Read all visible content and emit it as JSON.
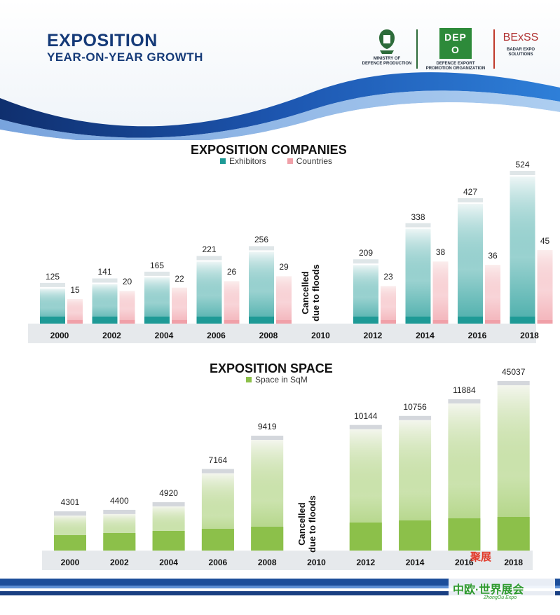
{
  "header": {
    "title": "EXPOSITION",
    "subtitle": "YEAR-ON-YEAR GROWTH",
    "logos": [
      {
        "name": "ministry-logo",
        "line1": "MINISTRY OF",
        "line2": "DEFENCE PRODUCTION"
      },
      {
        "name": "depo-logo",
        "mark": "DEPO",
        "line1": "DEFENCE EXPORT",
        "line2": "PROMOTION ORGANIZATION"
      },
      {
        "name": "badar-logo",
        "mark": "BExSS",
        "line1": "BADAR EXPO",
        "line2": "SOLUTIONS"
      }
    ]
  },
  "colors": {
    "header_blue": "#153a78",
    "exhibitors": "#1e9a96",
    "countries": "#f0a0a8",
    "space": "#8cc04a"
  },
  "cancel_note": [
    "Cancelled",
    "due to floods"
  ],
  "chart_data": [
    {
      "type": "bar",
      "title": "EXPOSITION COMPANIES",
      "categories": [
        "2000",
        "2002",
        "2004",
        "2006",
        "2008",
        "2010",
        "2012",
        "2014",
        "2016",
        "2018"
      ],
      "series": [
        {
          "name": "Exhibitors",
          "values": [
            125,
            141,
            165,
            221,
            256,
            null,
            209,
            338,
            427,
            524
          ]
        },
        {
          "name": "Countries",
          "values": [
            15,
            20,
            22,
            26,
            29,
            null,
            23,
            38,
            36,
            45
          ]
        }
      ],
      "legend": "top"
    },
    {
      "type": "bar",
      "title": "EXPOSITION SPACE",
      "categories": [
        "2000",
        "2002",
        "2004",
        "2006",
        "2008",
        "2010",
        "2012",
        "2014",
        "2016",
        "2018"
      ],
      "series": [
        {
          "name": "Space in SqM",
          "values": [
            4301,
            4400,
            4920,
            7164,
            9419,
            null,
            10144,
            10756,
            11884,
            45037
          ]
        }
      ],
      "legend": "top"
    }
  ],
  "watermark": {
    "main": "中欧·世界展会",
    "sub": "ZhongOu Expo",
    "badge": "聚展"
  }
}
